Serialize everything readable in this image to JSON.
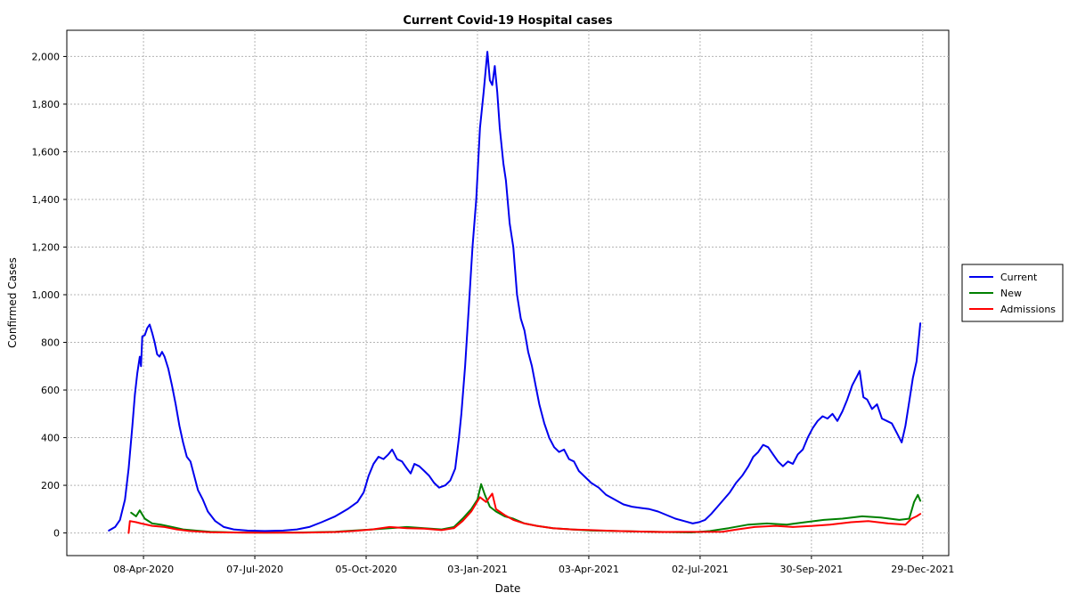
{
  "chart_data": {
    "type": "line",
    "title": "Current Covid-19 Hospital cases",
    "xlabel": "Date",
    "ylabel": "Confirmed Cases",
    "xlim": [
      "2020-02-06",
      "2022-01-19"
    ],
    "ylim": [
      -95,
      2110
    ],
    "grid": true,
    "legend_position": "right",
    "x_ticks": [
      "2020-04-08",
      "2020-07-07",
      "2020-10-05",
      "2021-01-03",
      "2021-04-03",
      "2021-07-02",
      "2021-09-30",
      "2021-12-29"
    ],
    "x_tick_labels": [
      "08-Apr-2020",
      "07-Jul-2020",
      "05-Oct-2020",
      "03-Jan-2021",
      "03-Apr-2021",
      "02-Jul-2021",
      "30-Sep-2021",
      "29-Dec-2021"
    ],
    "y_ticks": [
      0,
      200,
      400,
      600,
      800,
      1000,
      1200,
      1400,
      1600,
      1800,
      2000
    ],
    "y_tick_labels": [
      "0",
      "200",
      "400",
      "600",
      "800",
      "1,000",
      "1,200",
      "1,400",
      "1,600",
      "1,800",
      "2,000"
    ],
    "series": [
      {
        "name": "Current",
        "color": "#0000ee",
        "points": [
          [
            "2020-03-11",
            10
          ],
          [
            "2020-03-16",
            25
          ],
          [
            "2020-03-20",
            55
          ],
          [
            "2020-03-24",
            140
          ],
          [
            "2020-03-27",
            270
          ],
          [
            "2020-03-30",
            450
          ],
          [
            "2020-04-01",
            580
          ],
          [
            "2020-04-03",
            670
          ],
          [
            "2020-04-05",
            740
          ],
          [
            "2020-04-06",
            700
          ],
          [
            "2020-04-07",
            825
          ],
          [
            "2020-04-09",
            830
          ],
          [
            "2020-04-11",
            860
          ],
          [
            "2020-04-13",
            875
          ],
          [
            "2020-04-15",
            840
          ],
          [
            "2020-04-17",
            800
          ],
          [
            "2020-04-19",
            750
          ],
          [
            "2020-04-21",
            740
          ],
          [
            "2020-04-23",
            760
          ],
          [
            "2020-04-25",
            740
          ],
          [
            "2020-04-28",
            690
          ],
          [
            "2020-05-01",
            620
          ],
          [
            "2020-05-04",
            540
          ],
          [
            "2020-05-07",
            450
          ],
          [
            "2020-05-10",
            380
          ],
          [
            "2020-05-13",
            320
          ],
          [
            "2020-05-16",
            300
          ],
          [
            "2020-05-19",
            240
          ],
          [
            "2020-05-22",
            180
          ],
          [
            "2020-05-26",
            140
          ],
          [
            "2020-05-30",
            90
          ],
          [
            "2020-06-05",
            50
          ],
          [
            "2020-06-12",
            25
          ],
          [
            "2020-06-20",
            15
          ],
          [
            "2020-07-01",
            10
          ],
          [
            "2020-07-15",
            8
          ],
          [
            "2020-07-30",
            10
          ],
          [
            "2020-08-10",
            15
          ],
          [
            "2020-08-20",
            25
          ],
          [
            "2020-08-30",
            45
          ],
          [
            "2020-09-10",
            70
          ],
          [
            "2020-09-20",
            100
          ],
          [
            "2020-09-28",
            130
          ],
          [
            "2020-10-03",
            170
          ],
          [
            "2020-10-07",
            240
          ],
          [
            "2020-10-11",
            290
          ],
          [
            "2020-10-15",
            320
          ],
          [
            "2020-10-19",
            310
          ],
          [
            "2020-10-23",
            330
          ],
          [
            "2020-10-26",
            350
          ],
          [
            "2020-10-30",
            310
          ],
          [
            "2020-11-03",
            300
          ],
          [
            "2020-11-07",
            270
          ],
          [
            "2020-11-10",
            250
          ],
          [
            "2020-11-13",
            290
          ],
          [
            "2020-11-17",
            280
          ],
          [
            "2020-11-21",
            260
          ],
          [
            "2020-11-25",
            240
          ],
          [
            "2020-11-29",
            210
          ],
          [
            "2020-12-03",
            190
          ],
          [
            "2020-12-08",
            200
          ],
          [
            "2020-12-12",
            220
          ],
          [
            "2020-12-16",
            270
          ],
          [
            "2020-12-19",
            400
          ],
          [
            "2020-12-21",
            500
          ],
          [
            "2020-12-24",
            700
          ],
          [
            "2020-12-27",
            950
          ],
          [
            "2020-12-30",
            1200
          ],
          [
            "2021-01-02",
            1400
          ],
          [
            "2021-01-05",
            1700
          ],
          [
            "2021-01-08",
            1850
          ],
          [
            "2021-01-11",
            2020
          ],
          [
            "2021-01-13",
            1900
          ],
          [
            "2021-01-15",
            1880
          ],
          [
            "2021-01-17",
            1960
          ],
          [
            "2021-01-19",
            1850
          ],
          [
            "2021-01-21",
            1700
          ],
          [
            "2021-01-24",
            1550
          ],
          [
            "2021-01-26",
            1480
          ],
          [
            "2021-01-29",
            1300
          ],
          [
            "2021-02-01",
            1200
          ],
          [
            "2021-02-04",
            1000
          ],
          [
            "2021-02-07",
            900
          ],
          [
            "2021-02-10",
            850
          ],
          [
            "2021-02-13",
            760
          ],
          [
            "2021-02-16",
            700
          ],
          [
            "2021-02-19",
            620
          ],
          [
            "2021-02-22",
            540
          ],
          [
            "2021-02-26",
            460
          ],
          [
            "2021-03-02",
            400
          ],
          [
            "2021-03-06",
            360
          ],
          [
            "2021-03-10",
            340
          ],
          [
            "2021-03-14",
            350
          ],
          [
            "2021-03-18",
            310
          ],
          [
            "2021-03-22",
            300
          ],
          [
            "2021-03-26",
            260
          ],
          [
            "2021-03-30",
            240
          ],
          [
            "2021-04-05",
            210
          ],
          [
            "2021-04-11",
            190
          ],
          [
            "2021-04-17",
            160
          ],
          [
            "2021-04-24",
            140
          ],
          [
            "2021-05-01",
            120
          ],
          [
            "2021-05-08",
            110
          ],
          [
            "2021-05-15",
            105
          ],
          [
            "2021-05-22",
            100
          ],
          [
            "2021-05-29",
            90
          ],
          [
            "2021-06-05",
            75
          ],
          [
            "2021-06-12",
            60
          ],
          [
            "2021-06-19",
            50
          ],
          [
            "2021-06-26",
            40
          ],
          [
            "2021-07-01",
            45
          ],
          [
            "2021-07-06",
            55
          ],
          [
            "2021-07-11",
            80
          ],
          [
            "2021-07-16",
            110
          ],
          [
            "2021-07-21",
            140
          ],
          [
            "2021-07-26",
            170
          ],
          [
            "2021-07-31",
            210
          ],
          [
            "2021-08-05",
            240
          ],
          [
            "2021-08-10",
            280
          ],
          [
            "2021-08-14",
            320
          ],
          [
            "2021-08-18",
            340
          ],
          [
            "2021-08-22",
            370
          ],
          [
            "2021-08-26",
            360
          ],
          [
            "2021-08-30",
            330
          ],
          [
            "2021-09-03",
            300
          ],
          [
            "2021-09-07",
            280
          ],
          [
            "2021-09-11",
            300
          ],
          [
            "2021-09-15",
            290
          ],
          [
            "2021-09-19",
            330
          ],
          [
            "2021-09-23",
            350
          ],
          [
            "2021-09-27",
            400
          ],
          [
            "2021-10-01",
            440
          ],
          [
            "2021-10-05",
            470
          ],
          [
            "2021-10-09",
            490
          ],
          [
            "2021-10-13",
            480
          ],
          [
            "2021-10-17",
            500
          ],
          [
            "2021-10-21",
            470
          ],
          [
            "2021-10-25",
            510
          ],
          [
            "2021-10-29",
            560
          ],
          [
            "2021-11-02",
            620
          ],
          [
            "2021-11-06",
            660
          ],
          [
            "2021-11-08",
            680
          ],
          [
            "2021-11-11",
            570
          ],
          [
            "2021-11-14",
            560
          ],
          [
            "2021-11-18",
            520
          ],
          [
            "2021-11-22",
            540
          ],
          [
            "2021-11-26",
            480
          ],
          [
            "2021-11-30",
            470
          ],
          [
            "2021-12-04",
            460
          ],
          [
            "2021-12-08",
            420
          ],
          [
            "2021-12-12",
            380
          ],
          [
            "2021-12-15",
            450
          ],
          [
            "2021-12-18",
            550
          ],
          [
            "2021-12-21",
            650
          ],
          [
            "2021-12-24",
            720
          ],
          [
            "2021-12-27",
            880
          ]
        ]
      },
      {
        "name": "New",
        "color": "#008000",
        "points": [
          [
            "2020-03-29",
            85
          ],
          [
            "2020-04-02",
            70
          ],
          [
            "2020-04-05",
            95
          ],
          [
            "2020-04-09",
            60
          ],
          [
            "2020-04-15",
            40
          ],
          [
            "2020-04-22",
            35
          ],
          [
            "2020-05-01",
            25
          ],
          [
            "2020-05-10",
            15
          ],
          [
            "2020-05-20",
            10
          ],
          [
            "2020-06-01",
            5
          ],
          [
            "2020-06-20",
            2
          ],
          [
            "2020-07-15",
            1
          ],
          [
            "2020-08-15",
            2
          ],
          [
            "2020-09-10",
            5
          ],
          [
            "2020-09-25",
            10
          ],
          [
            "2020-10-10",
            15
          ],
          [
            "2020-10-24",
            20
          ],
          [
            "2020-11-07",
            25
          ],
          [
            "2020-11-21",
            20
          ],
          [
            "2020-12-05",
            15
          ],
          [
            "2020-12-15",
            25
          ],
          [
            "2020-12-22",
            60
          ],
          [
            "2020-12-29",
            100
          ],
          [
            "2021-01-03",
            140
          ],
          [
            "2021-01-06",
            205
          ],
          [
            "2021-01-09",
            160
          ],
          [
            "2021-01-13",
            110
          ],
          [
            "2021-01-18",
            90
          ],
          [
            "2021-01-25",
            70
          ],
          [
            "2021-02-01",
            60
          ],
          [
            "2021-02-10",
            40
          ],
          [
            "2021-02-20",
            30
          ],
          [
            "2021-03-05",
            20
          ],
          [
            "2021-03-20",
            15
          ],
          [
            "2021-04-05",
            10
          ],
          [
            "2021-04-25",
            8
          ],
          [
            "2021-05-15",
            6
          ],
          [
            "2021-06-05",
            4
          ],
          [
            "2021-06-25",
            2
          ],
          [
            "2021-07-10",
            8
          ],
          [
            "2021-07-25",
            20
          ],
          [
            "2021-08-10",
            35
          ],
          [
            "2021-08-25",
            40
          ],
          [
            "2021-09-10",
            35
          ],
          [
            "2021-09-25",
            45
          ],
          [
            "2021-10-10",
            55
          ],
          [
            "2021-10-25",
            60
          ],
          [
            "2021-11-10",
            70
          ],
          [
            "2021-11-25",
            65
          ],
          [
            "2021-12-10",
            55
          ],
          [
            "2021-12-18",
            60
          ],
          [
            "2021-12-22",
            130
          ],
          [
            "2021-12-25",
            160
          ],
          [
            "2021-12-27",
            135
          ]
        ]
      },
      {
        "name": "Admissions",
        "color": "#ff0000",
        "points": [
          [
            "2020-03-27",
            0
          ],
          [
            "2020-03-28",
            50
          ],
          [
            "2020-04-02",
            45
          ],
          [
            "2020-04-06",
            40
          ],
          [
            "2020-04-15",
            30
          ],
          [
            "2020-04-25",
            25
          ],
          [
            "2020-05-05",
            15
          ],
          [
            "2020-05-15",
            8
          ],
          [
            "2020-06-01",
            3
          ],
          [
            "2020-07-01",
            1
          ],
          [
            "2020-08-15",
            1
          ],
          [
            "2020-09-10",
            4
          ],
          [
            "2020-09-25",
            8
          ],
          [
            "2020-10-10",
            15
          ],
          [
            "2020-10-24",
            25
          ],
          [
            "2020-11-07",
            20
          ],
          [
            "2020-11-21",
            18
          ],
          [
            "2020-12-05",
            12
          ],
          [
            "2020-12-15",
            20
          ],
          [
            "2020-12-22",
            50
          ],
          [
            "2020-12-29",
            90
          ],
          [
            "2021-01-05",
            150
          ],
          [
            "2021-01-10",
            130
          ],
          [
            "2021-01-15",
            165
          ],
          [
            "2021-01-18",
            100
          ],
          [
            "2021-01-25",
            75
          ],
          [
            "2021-02-01",
            55
          ],
          [
            "2021-02-10",
            40
          ],
          [
            "2021-02-20",
            30
          ],
          [
            "2021-03-05",
            20
          ],
          [
            "2021-03-20",
            15
          ],
          [
            "2021-04-05",
            12
          ],
          [
            "2021-04-25",
            8
          ],
          [
            "2021-05-15",
            6
          ],
          [
            "2021-06-01",
            4
          ],
          [
            "2021-07-20",
            5
          ],
          [
            "2021-08-01",
            15
          ],
          [
            "2021-08-15",
            25
          ],
          [
            "2021-09-01",
            30
          ],
          [
            "2021-09-15",
            25
          ],
          [
            "2021-10-01",
            30
          ],
          [
            "2021-10-15",
            35
          ],
          [
            "2021-11-01",
            45
          ],
          [
            "2021-11-15",
            50
          ],
          [
            "2021-12-01",
            40
          ],
          [
            "2021-12-15",
            35
          ],
          [
            "2021-12-20",
            60
          ],
          [
            "2021-12-24",
            70
          ],
          [
            "2021-12-27",
            80
          ]
        ]
      }
    ]
  }
}
